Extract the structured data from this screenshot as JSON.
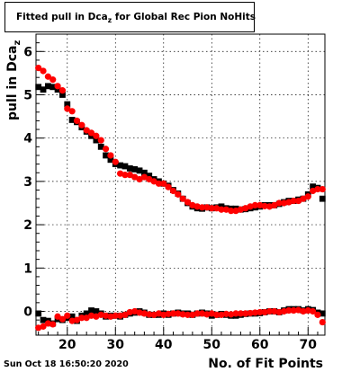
{
  "title": {
    "main": "Fitted pull in Dca",
    "subscript": "z",
    "rest": " for Global Rec Pion NoHits"
  },
  "footer": {
    "date": "Sun Oct 18 16:50:20 2020"
  },
  "chart_data": {
    "type": "scatter",
    "xlabel": "No. of Fit Points",
    "ylabel": "pull in Dca",
    "ylabel_subscript": "z",
    "xlim": [
      13.5,
      73.5
    ],
    "ylim": [
      -0.55,
      6.4
    ],
    "x_ticks": [
      20,
      30,
      40,
      50,
      60,
      70
    ],
    "y_ticks": [
      0,
      1,
      2,
      3,
      4,
      5,
      6
    ],
    "grid": true,
    "colors": {
      "black_series": "#000000",
      "red_series": "#ff0000"
    },
    "series": [
      {
        "marker": "square",
        "color": "#000000",
        "x": [
          14,
          15,
          16,
          17,
          18,
          19,
          20,
          21,
          22,
          23,
          24,
          25,
          26,
          27,
          28,
          29,
          30,
          31,
          32,
          33,
          34,
          35,
          36,
          37,
          38,
          39,
          40,
          41,
          42,
          43,
          44,
          45,
          46,
          47,
          48,
          49,
          50,
          51,
          52,
          53,
          54,
          55,
          56,
          57,
          58,
          59,
          60,
          61,
          62,
          63,
          64,
          65,
          66,
          67,
          68,
          69,
          70,
          71,
          72,
          73
        ],
        "y": [
          5.18,
          5.12,
          5.2,
          5.18,
          5.12,
          5.0,
          4.78,
          4.42,
          4.37,
          4.25,
          4.15,
          4.05,
          3.95,
          3.8,
          3.6,
          3.5,
          3.4,
          3.37,
          3.35,
          3.3,
          3.28,
          3.25,
          3.2,
          3.13,
          3.05,
          3.0,
          2.95,
          2.9,
          2.8,
          2.72,
          2.6,
          2.5,
          2.42,
          2.38,
          2.37,
          2.4,
          2.38,
          2.4,
          2.42,
          2.38,
          2.37,
          2.37,
          2.35,
          2.36,
          2.38,
          2.4,
          2.42,
          2.45,
          2.45,
          2.45,
          2.48,
          2.52,
          2.55,
          2.55,
          2.58,
          2.6,
          2.7,
          2.88,
          2.85,
          2.6
        ]
      },
      {
        "marker": "circle",
        "color": "#ff0000",
        "x": [
          14,
          15,
          16,
          17,
          18,
          19,
          20,
          21,
          22,
          23,
          24,
          25,
          26,
          27,
          28,
          29,
          30,
          31,
          32,
          33,
          34,
          35,
          36,
          37,
          38,
          39,
          40,
          41,
          42,
          43,
          44,
          45,
          46,
          47,
          48,
          49,
          50,
          51,
          52,
          53,
          54,
          55,
          56,
          57,
          58,
          59,
          60,
          61,
          62,
          63,
          64,
          65,
          66,
          67,
          68,
          69,
          70,
          71,
          72,
          73
        ],
        "y": [
          5.62,
          5.55,
          5.42,
          5.35,
          5.2,
          5.1,
          4.68,
          4.62,
          4.4,
          4.3,
          4.18,
          4.12,
          4.05,
          3.95,
          3.75,
          3.6,
          3.45,
          3.18,
          3.15,
          3.15,
          3.1,
          3.05,
          3.1,
          3.05,
          3.0,
          2.95,
          2.95,
          2.87,
          2.78,
          2.7,
          2.6,
          2.52,
          2.45,
          2.42,
          2.4,
          2.4,
          2.38,
          2.38,
          2.35,
          2.35,
          2.32,
          2.32,
          2.35,
          2.38,
          2.42,
          2.45,
          2.45,
          2.43,
          2.42,
          2.45,
          2.5,
          2.5,
          2.52,
          2.55,
          2.55,
          2.6,
          2.65,
          2.78,
          2.82,
          2.82
        ]
      },
      {
        "marker": "square",
        "color": "#000000",
        "x": [
          14,
          15,
          16,
          17,
          18,
          19,
          20,
          21,
          22,
          23,
          24,
          25,
          26,
          27,
          28,
          29,
          30,
          31,
          32,
          33,
          34,
          35,
          36,
          37,
          38,
          39,
          40,
          41,
          42,
          43,
          44,
          45,
          46,
          47,
          48,
          49,
          50,
          51,
          52,
          53,
          54,
          55,
          56,
          57,
          58,
          59,
          60,
          61,
          62,
          63,
          64,
          65,
          66,
          67,
          68,
          69,
          70,
          71,
          72,
          73
        ],
        "y": [
          -0.05,
          -0.2,
          -0.22,
          -0.28,
          -0.18,
          -0.2,
          -0.15,
          -0.12,
          -0.22,
          -0.1,
          -0.05,
          0.02,
          0.0,
          -0.05,
          -0.12,
          -0.1,
          -0.1,
          -0.12,
          -0.08,
          -0.05,
          -0.03,
          0.0,
          -0.03,
          -0.08,
          -0.08,
          -0.08,
          -0.05,
          -0.08,
          -0.05,
          -0.03,
          -0.05,
          -0.05,
          -0.08,
          -0.05,
          -0.03,
          -0.05,
          -0.1,
          -0.08,
          -0.06,
          -0.08,
          -0.1,
          -0.1,
          -0.08,
          -0.06,
          -0.05,
          -0.05,
          -0.04,
          -0.02,
          0.0,
          0.0,
          -0.02,
          0.02,
          0.05,
          0.05,
          0.05,
          0.02,
          0.05,
          0.03,
          -0.03,
          -0.05
        ]
      },
      {
        "marker": "circle",
        "color": "#ff0000",
        "x": [
          14,
          15,
          16,
          17,
          18,
          19,
          20,
          21,
          22,
          23,
          24,
          25,
          26,
          27,
          28,
          29,
          30,
          31,
          32,
          33,
          34,
          35,
          36,
          37,
          38,
          39,
          40,
          41,
          42,
          43,
          44,
          45,
          46,
          47,
          48,
          49,
          50,
          51,
          52,
          53,
          54,
          55,
          56,
          57,
          58,
          59,
          60,
          61,
          62,
          63,
          64,
          65,
          66,
          67,
          68,
          69,
          70,
          71,
          72,
          73
        ],
        "y": [
          -0.38,
          -0.35,
          -0.28,
          -0.3,
          -0.12,
          -0.18,
          -0.1,
          -0.22,
          -0.2,
          -0.15,
          -0.15,
          -0.1,
          -0.12,
          -0.08,
          -0.1,
          -0.12,
          -0.1,
          -0.1,
          -0.08,
          -0.02,
          0.0,
          -0.03,
          -0.05,
          -0.07,
          -0.08,
          -0.05,
          -0.08,
          -0.06,
          -0.05,
          -0.05,
          -0.07,
          -0.08,
          -0.08,
          -0.05,
          -0.05,
          -0.07,
          -0.05,
          -0.08,
          -0.08,
          -0.06,
          -0.07,
          -0.05,
          -0.05,
          -0.05,
          -0.04,
          -0.03,
          -0.02,
          -0.02,
          0.0,
          0.0,
          -0.02,
          0.0,
          0.02,
          0.02,
          0.03,
          0.0,
          0.02,
          0.0,
          -0.08,
          -0.25
        ]
      }
    ]
  }
}
